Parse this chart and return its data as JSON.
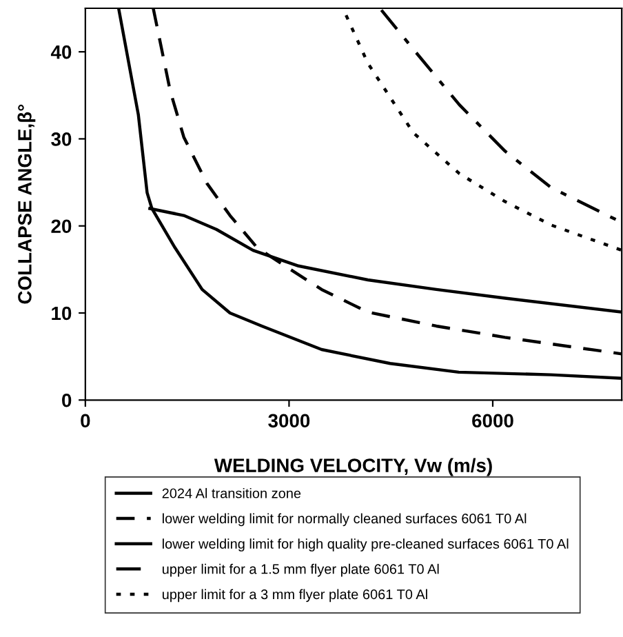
{
  "chart_data": {
    "type": "line",
    "xlabel": "WELDING VELOCITY, Vw (m/s)",
    "ylabel": "COLLAPSE ANGLE,β°",
    "xlim": [
      0,
      7900
    ],
    "ylim": [
      0,
      45
    ],
    "xticks": [
      0,
      3000,
      6000
    ],
    "yticks": [
      0,
      10,
      20,
      30,
      40
    ],
    "grid": false,
    "legend": "bottom",
    "marker": "none",
    "series": [
      {
        "name": "2024 Al transition zone",
        "color": "#000000",
        "line_style": "solid",
        "x": [
          490,
          780,
          910,
          980,
          1320,
          1720,
          2130,
          2600,
          3480,
          4490,
          5500,
          6860,
          7900
        ],
        "values": [
          45,
          32.8,
          23.8,
          22,
          17.5,
          12.7,
          10,
          8.5,
          5.8,
          4.2,
          3.2,
          2.9,
          2.5
        ]
      },
      {
        "name": "lower welding limit for normally cleaned surfaces 6061 T0 Al",
        "color": "#000000",
        "line_style": "dashed",
        "x": [
          1000,
          1250,
          1450,
          1790,
          2130,
          2530,
          2940,
          3480,
          4160,
          5170,
          6180,
          7900
        ],
        "values": [
          45,
          35.5,
          30.2,
          24.9,
          21.2,
          17.5,
          15.4,
          12.7,
          10.1,
          8.5,
          7.2,
          5.3
        ]
      },
      {
        "name": "lower welding limit for high quality pre-cleaned surfaces 6061 T0 Al",
        "color": "#000000",
        "line_style": "solid",
        "x": [
          950,
          1450,
          1930,
          2470,
          3140,
          4160,
          5170,
          6180,
          7900
        ],
        "values": [
          22,
          21.2,
          19.6,
          17.2,
          15.4,
          13.8,
          12.7,
          11.7,
          10.1
        ]
      },
      {
        "name": "upper limit for a 1.5 mm flyer plate 6061 T0 Al",
        "color": "#000000",
        "line_style": "dashdot",
        "x": [
          4360,
          4830,
          5510,
          6180,
          6860,
          7900
        ],
        "values": [
          44.8,
          40.3,
          33.9,
          28.6,
          24.4,
          20.4
        ]
      },
      {
        "name": "upper limit for a 3 mm flyer plate 6061 T0 Al",
        "color": "#000000",
        "line_style": "dotted",
        "x": [
          3840,
          4160,
          4830,
          5510,
          6180,
          6860,
          7900
        ],
        "values": [
          44.2,
          38.7,
          30.7,
          26,
          22.8,
          20.1,
          17.2
        ]
      }
    ]
  }
}
